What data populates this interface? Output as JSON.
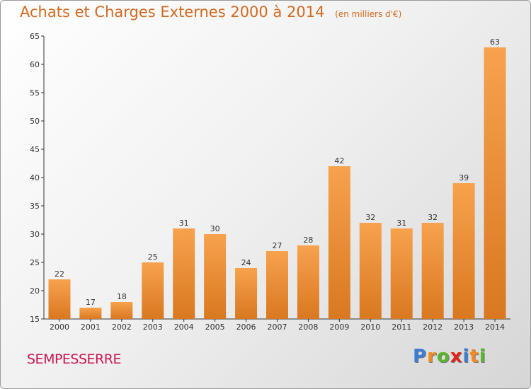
{
  "title": {
    "main": "Achats et Charges Externes 2000 à 2014",
    "sub": "(en milliers d'€)"
  },
  "commune": "SEMPESSERRE",
  "logo": {
    "text": "Proxiti",
    "letters": [
      "P",
      "r",
      "o",
      "x",
      "i",
      "t",
      "i"
    ],
    "colors": [
      "#3b7fd4",
      "#f08a24",
      "#5ab52e",
      "#e2231a",
      "#3b7fd4",
      "#f08a24",
      "#5ab52e"
    ]
  },
  "colors": {
    "bar_top": "#f7a24d",
    "bar_bottom": "#d97820",
    "axis": "#333333",
    "title": "#d2691e",
    "commune": "#c8174f"
  },
  "chart_data": {
    "type": "bar",
    "categories": [
      "2000",
      "2001",
      "2002",
      "2003",
      "2004",
      "2005",
      "2006",
      "2007",
      "2008",
      "2009",
      "2010",
      "2011",
      "2012",
      "2013",
      "2014"
    ],
    "values": [
      22,
      17,
      18,
      25,
      31,
      30,
      24,
      27,
      28,
      42,
      32,
      31,
      32,
      39,
      63
    ],
    "ylim": [
      15,
      65
    ],
    "yticks": [
      15,
      20,
      25,
      30,
      35,
      40,
      45,
      50,
      55,
      60,
      65
    ],
    "grid": false,
    "data_labels": true
  }
}
